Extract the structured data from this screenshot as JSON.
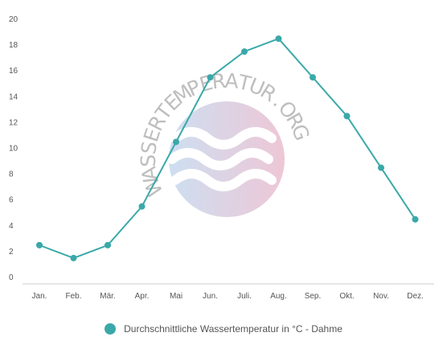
{
  "chart_data": {
    "type": "line",
    "categories": [
      "Jan.",
      "Feb.",
      "Mär.",
      "Apr.",
      "Mai",
      "Jun.",
      "Juli.",
      "Aug.",
      "Sep.",
      "Okt.",
      "Nov.",
      "Dez."
    ],
    "series": [
      {
        "name": "Durchschnittliche Wassertemperatur in °C - Dahme",
        "values": [
          2.5,
          1.5,
          2.5,
          5.5,
          10.5,
          15.5,
          17.5,
          18.5,
          15.5,
          12.5,
          8.5,
          4.5
        ],
        "color": "#3aa8a9"
      }
    ],
    "yticks": [
      0,
      2,
      4,
      6,
      8,
      10,
      12,
      14,
      16,
      18,
      20
    ],
    "ylim": [
      0,
      20
    ],
    "grid": false,
    "legend_position": "bottom-center"
  },
  "watermark": {
    "text": "WASSERTEMPERATUR.ORG",
    "colors": [
      "#bcd4ec",
      "#e8b4c8"
    ]
  }
}
